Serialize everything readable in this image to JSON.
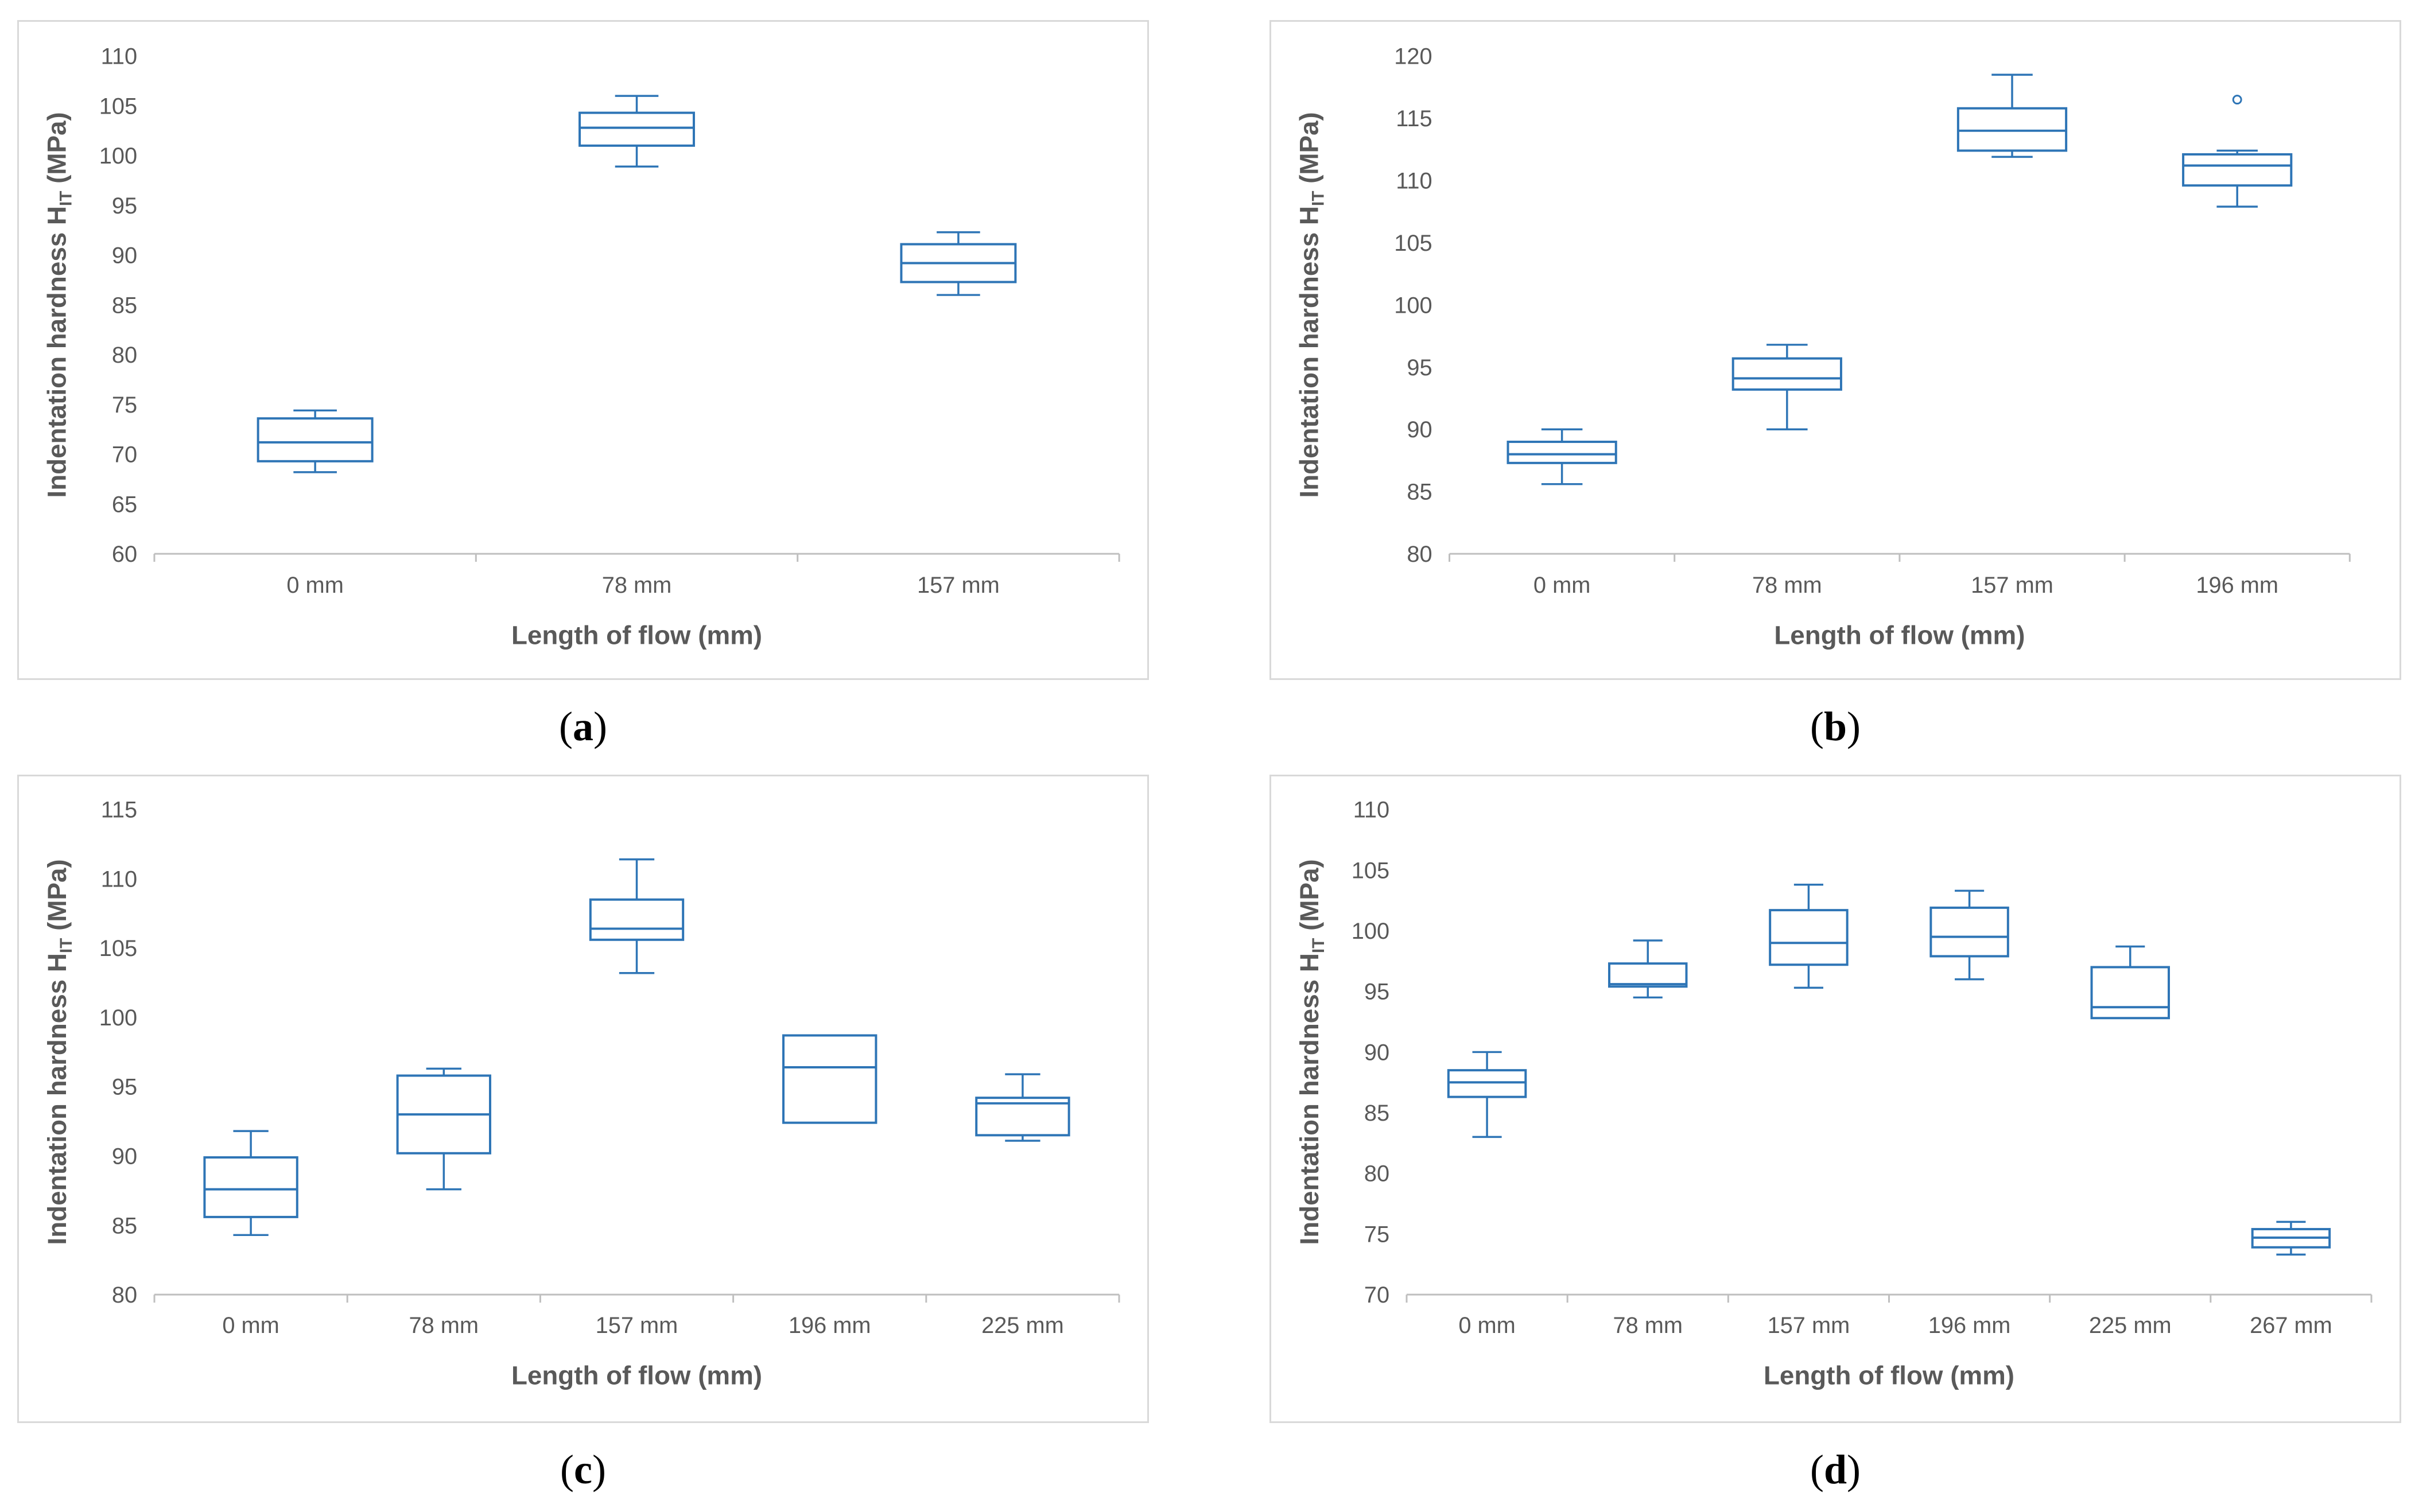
{
  "chart_data": [
    {
      "id": "a",
      "type": "box",
      "caption": "a",
      "xlabel": "Length of flow (mm)",
      "ylabel_main": "Indentation hardness H",
      "ylabel_sub": "IT",
      "ylabel_unit": " (MPa)",
      "ylim": [
        60,
        110
      ],
      "yticks": [
        60,
        65,
        70,
        75,
        80,
        85,
        90,
        95,
        100,
        105,
        110
      ],
      "categories": [
        "0 mm",
        "78 mm",
        "157 mm"
      ],
      "boxes": [
        {
          "min": 68.2,
          "q1": 69.3,
          "median": 71.2,
          "q3": 73.6,
          "max": 74.4,
          "outliers": []
        },
        {
          "min": 98.9,
          "q1": 101.0,
          "median": 102.8,
          "q3": 104.3,
          "max": 106.0,
          "outliers": []
        },
        {
          "min": 86.0,
          "q1": 87.3,
          "median": 89.2,
          "q3": 91.1,
          "max": 92.3,
          "outliers": []
        }
      ],
      "color": "#2e75b6",
      "grid": false
    },
    {
      "id": "b",
      "type": "box",
      "caption": "b",
      "xlabel": "Length of flow (mm)",
      "ylabel_main": "Indentation hardness H",
      "ylabel_sub": "IT",
      "ylabel_unit": " (MPa)",
      "ylim": [
        80,
        120
      ],
      "yticks": [
        80,
        85,
        90,
        95,
        100,
        105,
        110,
        115,
        120
      ],
      "categories": [
        "0 mm",
        "78 mm",
        "157 mm",
        "196 mm"
      ],
      "boxes": [
        {
          "min": 85.6,
          "q1": 87.3,
          "median": 88.0,
          "q3": 89.0,
          "max": 90.0,
          "outliers": []
        },
        {
          "min": 90.0,
          "q1": 93.2,
          "median": 94.1,
          "q3": 95.7,
          "max": 96.8,
          "outliers": []
        },
        {
          "min": 111.9,
          "q1": 112.4,
          "median": 114.0,
          "q3": 115.8,
          "max": 118.5,
          "outliers": []
        },
        {
          "min": 107.9,
          "q1": 109.6,
          "median": 111.2,
          "q3": 112.1,
          "max": 112.4,
          "outliers": [
            116.5
          ]
        }
      ],
      "color": "#2e75b6",
      "grid": false
    },
    {
      "id": "c",
      "type": "box",
      "caption": "c",
      "xlabel": "Length of flow (mm)",
      "ylabel_main": "Indentation hardness H",
      "ylabel_sub": "IT",
      "ylabel_unit": " (MPa)",
      "ylim": [
        80,
        115
      ],
      "yticks": [
        80,
        85,
        90,
        95,
        100,
        105,
        110,
        115
      ],
      "categories": [
        "0 mm",
        "78 mm",
        "157 mm",
        "196 mm",
        "225 mm"
      ],
      "boxes": [
        {
          "min": 84.3,
          "q1": 85.6,
          "median": 87.6,
          "q3": 89.9,
          "max": 91.8,
          "outliers": []
        },
        {
          "min": 87.6,
          "q1": 90.2,
          "median": 93.0,
          "q3": 95.8,
          "max": 96.3,
          "outliers": []
        },
        {
          "min": 103.2,
          "q1": 105.6,
          "median": 106.4,
          "q3": 108.5,
          "max": 111.4,
          "outliers": []
        },
        {
          "min": 92.4,
          "q1": 92.4,
          "median": 96.4,
          "q3": 98.7,
          "max": 98.7,
          "outliers": []
        },
        {
          "min": 91.1,
          "q1": 91.5,
          "median": 93.8,
          "q3": 94.2,
          "max": 95.9,
          "outliers": []
        }
      ],
      "color": "#2e75b6",
      "grid": false
    },
    {
      "id": "d",
      "type": "box",
      "caption": "d",
      "xlabel": "Length of flow (mm)",
      "ylabel_main": "Indentation hardness H",
      "ylabel_sub": "IT",
      "ylabel_unit": " (MPa)",
      "ylim": [
        70,
        110
      ],
      "yticks": [
        70,
        75,
        80,
        85,
        90,
        95,
        100,
        105,
        110
      ],
      "categories": [
        "0 mm",
        "78 mm",
        "157 mm",
        "196 mm",
        "225 mm",
        "267 mm"
      ],
      "boxes": [
        {
          "min": 83.0,
          "q1": 86.3,
          "median": 87.5,
          "q3": 88.5,
          "max": 90.0,
          "outliers": []
        },
        {
          "min": 94.5,
          "q1": 95.4,
          "median": 95.6,
          "q3": 97.3,
          "max": 99.2,
          "outliers": []
        },
        {
          "min": 95.3,
          "q1": 97.2,
          "median": 99.0,
          "q3": 101.7,
          "max": 103.8,
          "outliers": []
        },
        {
          "min": 96.0,
          "q1": 97.9,
          "median": 99.5,
          "q3": 101.9,
          "max": 103.3,
          "outliers": []
        },
        {
          "min": 92.8,
          "q1": 92.8,
          "median": 93.7,
          "q3": 97.0,
          "max": 98.7,
          "outliers": []
        },
        {
          "min": 73.3,
          "q1": 73.9,
          "median": 74.7,
          "q3": 75.4,
          "max": 76.0,
          "outliers": []
        }
      ],
      "color": "#2e75b6",
      "grid": false
    }
  ]
}
